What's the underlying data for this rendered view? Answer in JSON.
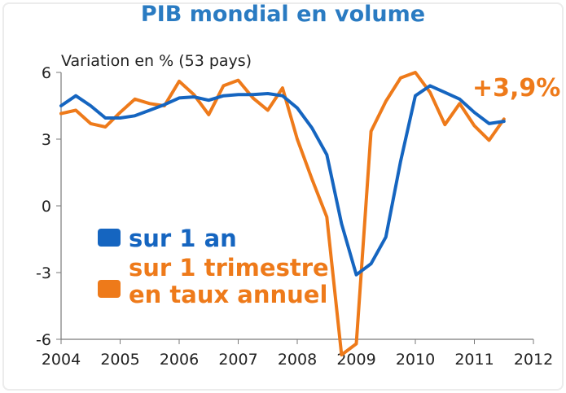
{
  "chart_data": {
    "type": "line",
    "title": "PIB mondial en volume",
    "ylabel": "Variation en % (53 pays)",
    "xlabel": "",
    "xlim": [
      2004,
      2012
    ],
    "ylim": [
      -6,
      6
    ],
    "x_ticks": [
      "2004",
      "2005",
      "2006",
      "2007",
      "2008",
      "2009",
      "2010",
      "2011",
      "2012"
    ],
    "y_ticks": [
      "6",
      "3",
      "0",
      "-3",
      "-6"
    ],
    "grid": false,
    "legend_position": "lower-left",
    "series": [
      {
        "name": "sur 1 an",
        "color": "#1565c0",
        "points": [
          [
            2004.0,
            4.5
          ],
          [
            2004.25,
            4.95
          ],
          [
            2004.5,
            4.5
          ],
          [
            2004.75,
            3.95
          ],
          [
            2005.0,
            3.95
          ],
          [
            2005.25,
            4.05
          ],
          [
            2005.5,
            4.3
          ],
          [
            2005.75,
            4.55
          ],
          [
            2006.0,
            4.85
          ],
          [
            2006.25,
            4.9
          ],
          [
            2006.5,
            4.75
          ],
          [
            2006.75,
            4.95
          ],
          [
            2007.0,
            5.0
          ],
          [
            2007.25,
            5.0
          ],
          [
            2007.5,
            5.05
          ],
          [
            2007.75,
            4.95
          ],
          [
            2008.0,
            4.4
          ],
          [
            2008.25,
            3.5
          ],
          [
            2008.5,
            2.3
          ],
          [
            2008.75,
            -0.8
          ],
          [
            2009.0,
            -3.1
          ],
          [
            2009.25,
            -2.6
          ],
          [
            2009.5,
            -1.4
          ],
          [
            2009.75,
            2.0
          ],
          [
            2010.0,
            4.95
          ],
          [
            2010.25,
            5.4
          ],
          [
            2010.5,
            5.1
          ],
          [
            2010.75,
            4.8
          ],
          [
            2011.0,
            4.2
          ],
          [
            2011.25,
            3.7
          ],
          [
            2011.5,
            3.8
          ]
        ]
      },
      {
        "name": "sur 1 trimestre en taux annuel",
        "color": "#ee7a1a",
        "points": [
          [
            2004.0,
            4.15
          ],
          [
            2004.25,
            4.3
          ],
          [
            2004.5,
            3.7
          ],
          [
            2004.75,
            3.55
          ],
          [
            2005.0,
            4.2
          ],
          [
            2005.25,
            4.8
          ],
          [
            2005.5,
            4.6
          ],
          [
            2005.75,
            4.5
          ],
          [
            2006.0,
            5.6
          ],
          [
            2006.25,
            5.0
          ],
          [
            2006.5,
            4.1
          ],
          [
            2006.75,
            5.4
          ],
          [
            2007.0,
            5.65
          ],
          [
            2007.25,
            4.85
          ],
          [
            2007.5,
            4.3
          ],
          [
            2007.75,
            5.3
          ],
          [
            2008.0,
            3.0
          ],
          [
            2008.25,
            1.2
          ],
          [
            2008.5,
            -0.5
          ],
          [
            2008.75,
            -6.7
          ],
          [
            2009.0,
            -6.2
          ],
          [
            2009.25,
            3.35
          ],
          [
            2009.5,
            4.7
          ],
          [
            2009.75,
            5.75
          ],
          [
            2010.0,
            6.0
          ],
          [
            2010.25,
            5.1
          ],
          [
            2010.5,
            3.65
          ],
          [
            2010.75,
            4.6
          ],
          [
            2011.0,
            3.6
          ],
          [
            2011.25,
            2.95
          ],
          [
            2011.5,
            3.9
          ]
        ]
      }
    ],
    "annotation": {
      "text": "+3,9%",
      "color": "#ee7a1a"
    }
  },
  "legend": {
    "series1_label": "sur 1 an",
    "series2_line1": "sur 1 trimestre",
    "series2_line2": "en taux annuel",
    "series1_color": "#1565c0",
    "series2_color": "#ee7a1a"
  }
}
